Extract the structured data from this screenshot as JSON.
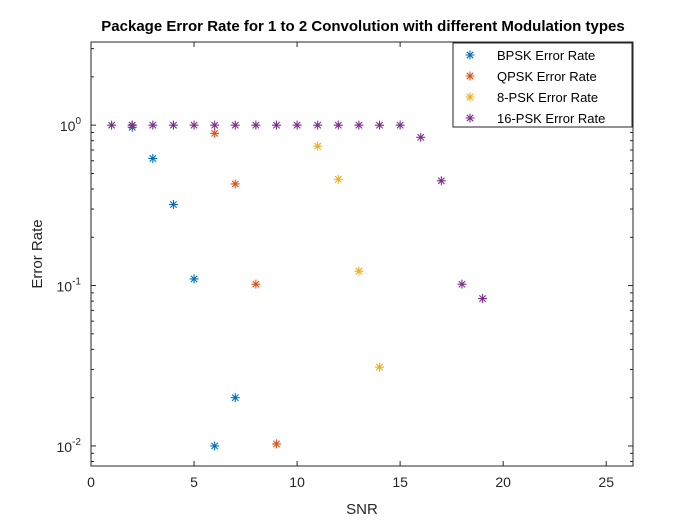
{
  "chart_data": {
    "type": "scatter",
    "title": "Package Error Rate for 1 to 2 Convolution with different Modulation types",
    "xlabel": "SNR",
    "ylabel": "Error Rate",
    "xlim": [
      0,
      26.3
    ],
    "ylim": [
      0.0075,
      3.3
    ],
    "yscale": "log",
    "grid": false,
    "legend_position": "top-right",
    "x_ticks": [
      0,
      5,
      10,
      15,
      20,
      25
    ],
    "y_ticks": [
      {
        "value": 0.01,
        "base": "10",
        "exp": "-2"
      },
      {
        "value": 0.1,
        "base": "10",
        "exp": "-1"
      },
      {
        "value": 1,
        "base": "10",
        "exp": "0"
      }
    ],
    "marker": "asterisk",
    "series": [
      {
        "name": "BPSK Error Rate",
        "color": "#0072BD",
        "points": [
          [
            2,
            0.97
          ],
          [
            3,
            0.62
          ],
          [
            4,
            0.32
          ],
          [
            5,
            0.11
          ],
          [
            6,
            0.01
          ],
          [
            7,
            0.02
          ]
        ]
      },
      {
        "name": "QPSK Error Rate",
        "color": "#D95319",
        "points": [
          [
            2,
            1.0
          ],
          [
            6,
            0.89
          ],
          [
            7,
            0.43
          ],
          [
            8,
            0.102
          ],
          [
            9,
            0.0103
          ]
        ]
      },
      {
        "name": "8-PSK Error Rate",
        "color": "#EDB120",
        "points": [
          [
            11,
            0.74
          ],
          [
            12,
            0.46
          ],
          [
            13,
            0.123
          ],
          [
            14,
            0.031
          ]
        ]
      },
      {
        "name": "16-PSK Error Rate",
        "color": "#7E2F8E",
        "points": [
          [
            1,
            1
          ],
          [
            2,
            1
          ],
          [
            3,
            1
          ],
          [
            4,
            1
          ],
          [
            5,
            1
          ],
          [
            6,
            1
          ],
          [
            7,
            1
          ],
          [
            8,
            1
          ],
          [
            9,
            1
          ],
          [
            10,
            1
          ],
          [
            11,
            1
          ],
          [
            12,
            1
          ],
          [
            13,
            1
          ],
          [
            14,
            1
          ],
          [
            15,
            1
          ],
          [
            16,
            0.84
          ],
          [
            17,
            0.45
          ],
          [
            18,
            0.102
          ],
          [
            19,
            0.083
          ]
        ]
      }
    ]
  }
}
